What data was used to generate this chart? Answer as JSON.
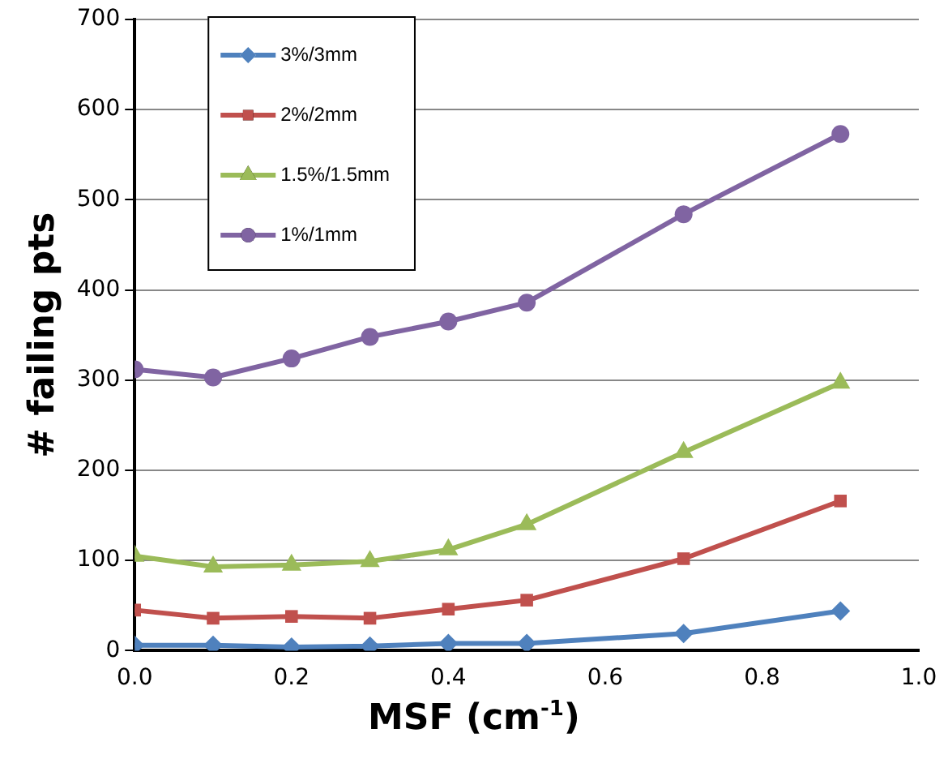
{
  "chart_data": {
    "type": "line",
    "ylabel": "# failing pts",
    "xlabel": "MSF (cm$^{-1}$)",
    "x": [
      0,
      0.1,
      0.2,
      0.3,
      0.4,
      0.5,
      0.7,
      0.9
    ],
    "series": [
      {
        "name": "3%/3mm",
        "color": "#4f81bd",
        "marker": "diamond",
        "values": [
          6,
          6,
          4,
          5,
          8,
          8,
          19,
          44
        ]
      },
      {
        "name": "2%/2mm",
        "color": "#c0504d",
        "marker": "square",
        "values": [
          45,
          36,
          38,
          36,
          46,
          56,
          102,
          166
        ]
      },
      {
        "name": "1.5%/1.5mm",
        "color": "#9bbb59",
        "marker": "triangle",
        "values": [
          105,
          93,
          95,
          99,
          112,
          140,
          220,
          297
        ]
      },
      {
        "name": "1%/1mm",
        "color": "#8064a2",
        "marker": "circle",
        "values": [
          312,
          303,
          324,
          348,
          365,
          386,
          484,
          573
        ]
      }
    ],
    "xlim": [
      0,
      1
    ],
    "xticks": [
      {
        "value": 0,
        "label": "0.0"
      },
      {
        "value": 0.2,
        "label": "0.2"
      },
      {
        "value": 0.4,
        "label": "0.4"
      },
      {
        "value": 0.6,
        "label": "0.6"
      },
      {
        "value": 0.8,
        "label": "0.8"
      },
      {
        "value": 1,
        "label": "1.0"
      }
    ],
    "ylim": [
      0,
      700
    ],
    "yticks": [
      0,
      100,
      200,
      300,
      400,
      500,
      600,
      700
    ],
    "grid": "y",
    "legend": "top left",
    "line_style": "solid"
  }
}
